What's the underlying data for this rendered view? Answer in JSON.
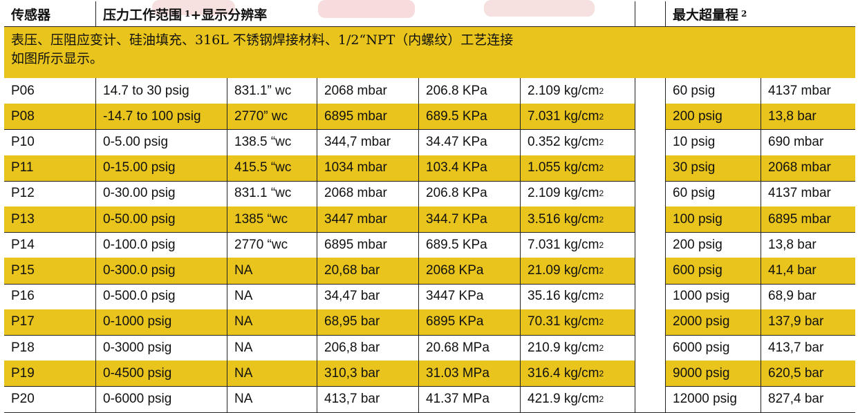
{
  "header": {
    "sensor": "传感器",
    "range": "压力工作范围",
    "range_sup": "1",
    "range_suffix": "+显示分辨率",
    "max_over": "最大超量程",
    "max_over_sup": "2"
  },
  "note": {
    "line1": "表压、压阻应变计、硅油填充、316L 不锈钢焊接材料、1/2“NPT（内螺纹）工艺连接",
    "line2": "如图所示显示。"
  },
  "rows": [
    {
      "sensor": "P06",
      "psig": "14.7 to 30 psig",
      "wc": "831.1” wc",
      "mbar": "2068 mbar",
      "kpa": "206.8 KPa",
      "kg": "2.109 kg/cm",
      "over_psig": "60 psig",
      "over_unit": "4137 mbar"
    },
    {
      "sensor": "P08",
      "psig": "-14.7 to 100 psig",
      "wc": "2770” wc",
      "mbar": "6895 mbar",
      "kpa": "689.5 KPa",
      "kg": "7.031 kg/cm",
      "over_psig": "200 psig",
      "over_unit": "13,8 bar"
    },
    {
      "sensor": "P10",
      "psig": "0-5.00 psig",
      "wc": "138.5 “wc",
      "mbar": "344,7 mbar",
      "kpa": "34.47 KPa",
      "kg": "0.352 kg/cm",
      "over_psig": "10 psig",
      "over_unit": "690 mbar"
    },
    {
      "sensor": "P11",
      "psig": "0-15.00 psig",
      "wc": "415.5 “wc",
      "mbar": "1034 mbar",
      "kpa": "103.4 KPa",
      "kg": "1.055 kg/cm",
      "over_psig": "30 psig",
      "over_unit": "2068 mbar"
    },
    {
      "sensor": "P12",
      "psig": "0-30.00 psig",
      "wc": "831.1 “wc",
      "mbar": "2068 mbar",
      "kpa": "206.8 KPa",
      "kg": "2.109 kg/cm",
      "over_psig": "60 psig",
      "over_unit": "4137 mbar"
    },
    {
      "sensor": "P13",
      "psig": "0-50.00 psig",
      "wc": "1385 “wc",
      "mbar": "3447 mbar",
      "kpa": "344.7 KPa",
      "kg": "3.516 kg/cm",
      "over_psig": "100 psig",
      "over_unit": "6895 mbar"
    },
    {
      "sensor": "P14",
      "psig": "0-100.0 psig",
      "wc": "2770 “wc",
      "mbar": "6895 mbar",
      "kpa": "689.5 KPa",
      "kg": "7.031 kg/cm",
      "over_psig": "200 psig",
      "over_unit": "13,8 bar"
    },
    {
      "sensor": "P15",
      "psig": "0-300.0 psig",
      "wc": "NA",
      "mbar": "20,68 bar",
      "kpa": "2068 KPa",
      "kg": "21.09 kg/cm",
      "over_psig": "600 psig",
      "over_unit": "41,4 bar"
    },
    {
      "sensor": "P16",
      "psig": "0-500.0 psig",
      "wc": "NA",
      "mbar": "34,47 bar",
      "kpa": "3447 KPa",
      "kg": "35.16 kg/cm",
      "over_psig": "1000 psig",
      "over_unit": "68,9 bar"
    },
    {
      "sensor": "P17",
      "psig": "0-1000 psig",
      "wc": "NA",
      "mbar": "68,95 bar",
      "kpa": "6895 KPa",
      "kg": "70.31 kg/cm",
      "over_psig": "2000 psig",
      "over_unit": "137,9 bar"
    },
    {
      "sensor": "P18",
      "psig": "0-3000 psig",
      "wc": "NA",
      "mbar": "206,8 bar",
      "kpa": "20.68 MPa",
      "kg": "210.9 kg/cm",
      "over_psig": "6000 psig",
      "over_unit": "413,7 bar"
    },
    {
      "sensor": "P19",
      "psig": "0-4500 psig",
      "wc": "NA",
      "mbar": "310,3 bar",
      "kpa": "31.03 MPa",
      "kg": "316.4 kg/cm",
      "over_psig": "9000 psig",
      "over_unit": "620,5 bar"
    },
    {
      "sensor": "P20",
      "psig": "0-6000 psig",
      "wc": "NA",
      "mbar": "413,7 bar",
      "kpa": "41.37 MPa",
      "kg": "421.9 kg/cm",
      "over_psig": "12000 psig",
      "over_unit": "827,4 bar"
    }
  ],
  "kg_sup": "2",
  "colors": {
    "highlight": "#e8c41c",
    "border": "#222222",
    "watermark": "#f3d8d8"
  }
}
